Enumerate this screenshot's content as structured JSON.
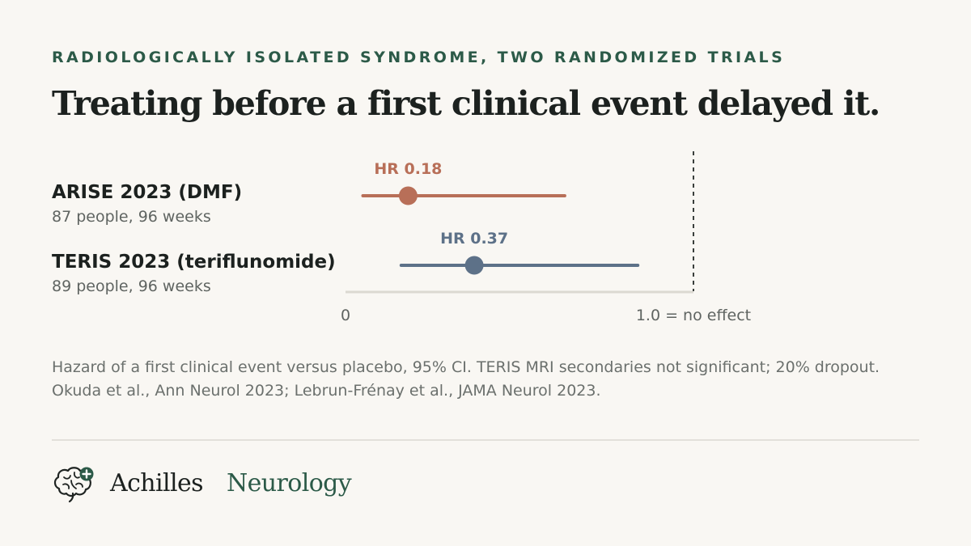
{
  "header": {
    "eyebrow": "RADIOLOGICALLY ISOLATED SYNDROME, TWO RANDOMIZED TRIALS",
    "headline": "Treating before a first clinical event delayed it."
  },
  "chart_data": {
    "type": "forest",
    "xlim": [
      0,
      1.0
    ],
    "reference_line": 1.0,
    "x_tick_labels": [
      "0",
      "1.0 = no effect"
    ],
    "rows": [
      {
        "name": "ARISE 2023 (DMF)",
        "detail": "87 people, 96 weeks",
        "hr": 0.18,
        "hr_label": "HR 0.18",
        "ci_low": 0.05,
        "ci_high": 0.63,
        "color": "#b86f58"
      },
      {
        "name": "TERIS 2023 (teriflunomide)",
        "detail": "89 people, 96 weeks",
        "hr": 0.37,
        "hr_label": "HR 0.37",
        "ci_low": 0.16,
        "ci_high": 0.84,
        "color": "#5d7188"
      }
    ]
  },
  "footnote": "Hazard of a first clinical event versus placebo, 95% CI. TERIS MRI secondaries not significant; 20% dropout. Okuda et al., Ann Neurol 2023; Lebrun-Frénay et al., JAMA Neurol 2023.",
  "brand": {
    "name": "Achilles",
    "section": "Neurology",
    "logo_icon": "brain-plus-icon",
    "accent": "#2c5a48"
  }
}
